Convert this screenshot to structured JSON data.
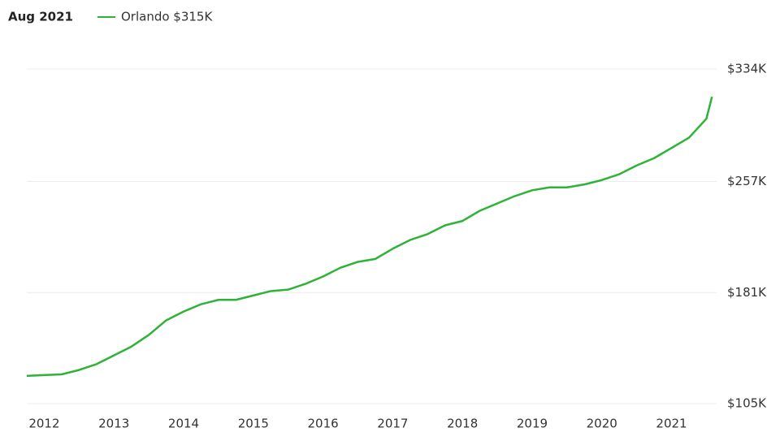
{
  "chart_data": {
    "type": "line",
    "date_label": "Aug 2021",
    "x": [
      2011.75,
      2012.0,
      2012.25,
      2012.5,
      2012.75,
      2013.0,
      2013.25,
      2013.5,
      2013.75,
      2014.0,
      2014.25,
      2014.5,
      2014.75,
      2015.0,
      2015.25,
      2015.5,
      2015.75,
      2016.0,
      2016.25,
      2016.5,
      2016.75,
      2017.0,
      2017.25,
      2017.5,
      2017.75,
      2018.0,
      2018.25,
      2018.5,
      2018.75,
      2019.0,
      2019.25,
      2019.5,
      2019.75,
      2020.0,
      2020.25,
      2020.5,
      2020.75,
      2021.0,
      2021.25,
      2021.5,
      2021.58
    ],
    "series": [
      {
        "name": "Orlando $315K",
        "color": "#2db336",
        "values": [
          124,
          124.5,
          125,
          128,
          132,
          138,
          144,
          152,
          162,
          168,
          173,
          176,
          176,
          179,
          182,
          183,
          187,
          192,
          198,
          202,
          204,
          211,
          217,
          221,
          227,
          230,
          237,
          242,
          247,
          251,
          253,
          253,
          255,
          258,
          262,
          268,
          273,
          280,
          287,
          300,
          315
        ]
      }
    ],
    "xlim": [
      2011.75,
      2021.6
    ],
    "xticks": [
      2012,
      2013,
      2014,
      2015,
      2016,
      2017,
      2018,
      2019,
      2020,
      2021
    ],
    "ylim": [
      105,
      334
    ],
    "yticks": [
      {
        "value": 105,
        "label": "$105K"
      },
      {
        "value": 181,
        "label": "$181K"
      },
      {
        "value": 257,
        "label": "$257K"
      },
      {
        "value": 334,
        "label": "$334K"
      }
    ],
    "grid": true
  }
}
